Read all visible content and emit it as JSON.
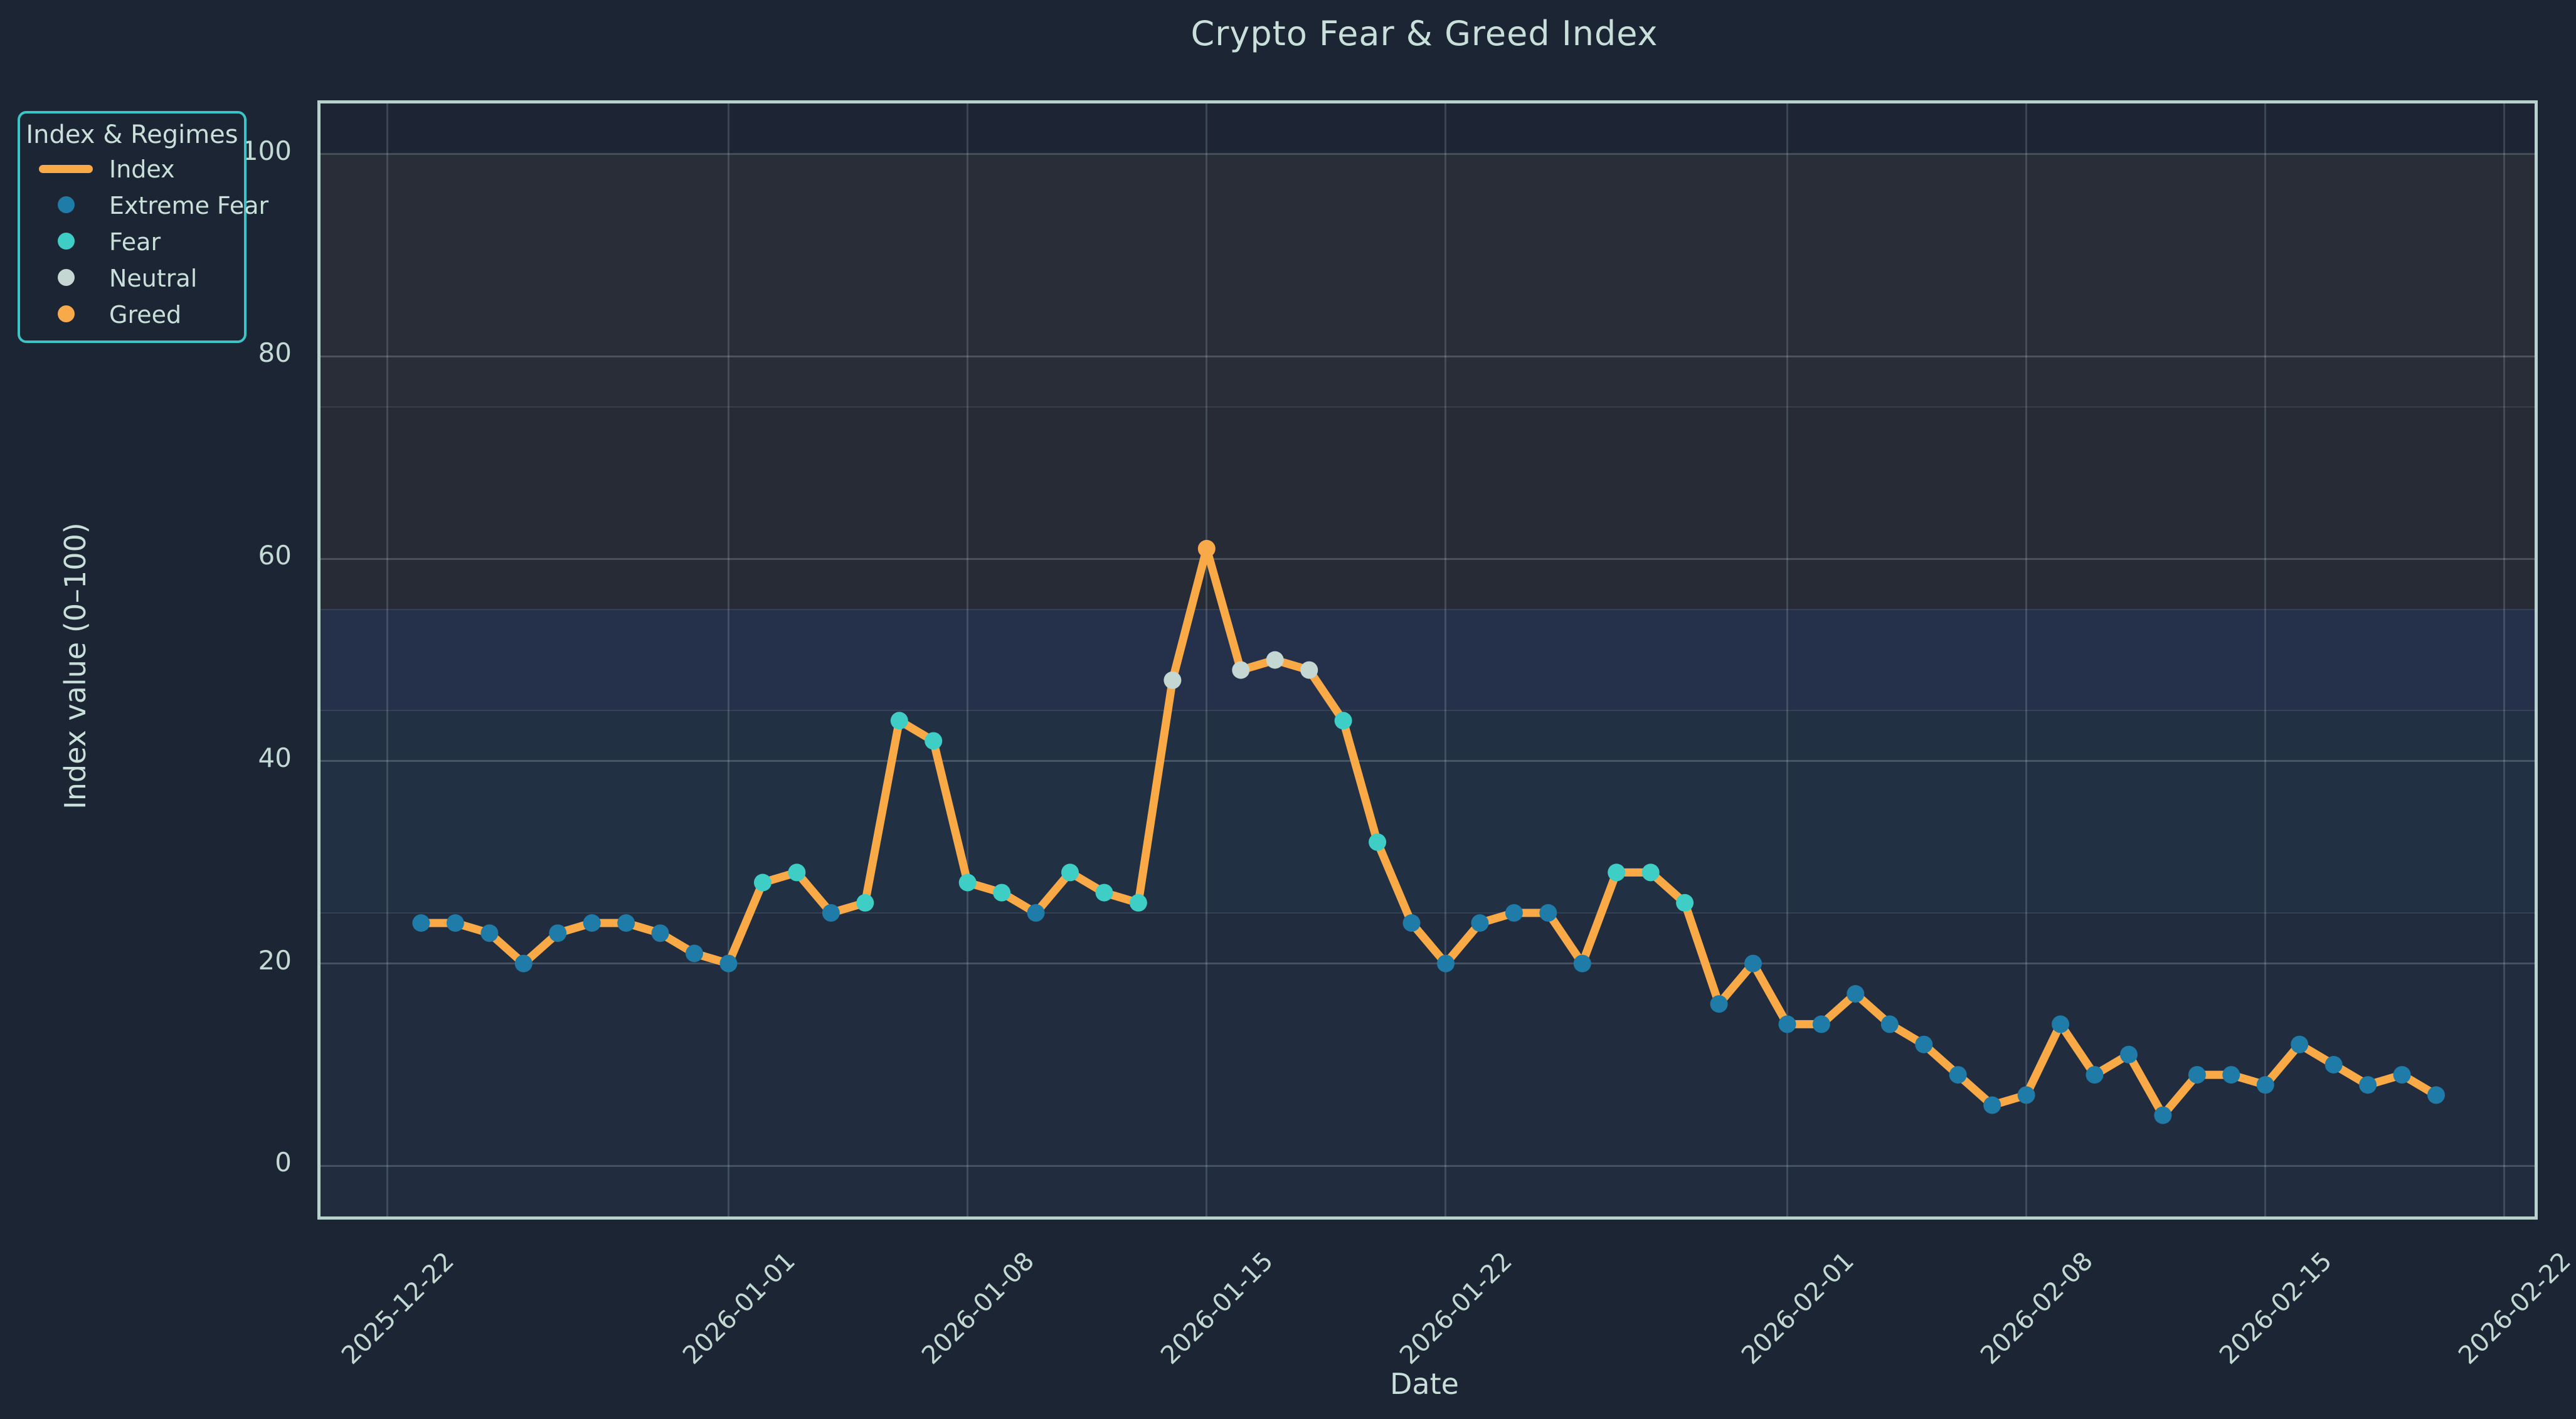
{
  "chart": {
    "title": "Crypto Fear & Greed Index",
    "xlabel": "Date",
    "ylabel": "Index value (0–100)"
  },
  "legend": {
    "title": "Index & Regimes",
    "items": [
      {
        "label": "Index",
        "marker": "line",
        "color": "#f9a946"
      },
      {
        "label": "Extreme Fear",
        "marker": "dot",
        "color": "#1f7ca8"
      },
      {
        "label": "Fear",
        "marker": "dot",
        "color": "#3fcec5"
      },
      {
        "label": "Neutral",
        "marker": "dot",
        "color": "#c4d7d2"
      },
      {
        "label": "Greed",
        "marker": "dot",
        "color": "#f8aa4b"
      }
    ]
  },
  "chart_data": {
    "type": "line",
    "title": "Crypto Fear & Greed Index",
    "xlabel": "Date",
    "ylabel": "Index value (0–100)",
    "series_name": "Index",
    "line_color": "#f9a946",
    "x": [
      "2025-12-23",
      "2025-12-24",
      "2025-12-25",
      "2025-12-26",
      "2025-12-27",
      "2025-12-28",
      "2025-12-29",
      "2025-12-30",
      "2025-12-31",
      "2026-01-01",
      "2026-01-02",
      "2026-01-03",
      "2026-01-04",
      "2026-01-05",
      "2026-01-06",
      "2026-01-07",
      "2026-01-08",
      "2026-01-09",
      "2026-01-10",
      "2026-01-11",
      "2026-01-12",
      "2026-01-13",
      "2026-01-14",
      "2026-01-15",
      "2026-01-16",
      "2026-01-17",
      "2026-01-18",
      "2026-01-19",
      "2026-01-20",
      "2026-01-21",
      "2026-01-22",
      "2026-01-23",
      "2026-01-24",
      "2026-01-25",
      "2026-01-26",
      "2026-01-27",
      "2026-01-28",
      "2026-01-29",
      "2026-01-30",
      "2026-01-31",
      "2026-02-01",
      "2026-02-02",
      "2026-02-03",
      "2026-02-04",
      "2026-02-05",
      "2026-02-06",
      "2026-02-07",
      "2026-02-08",
      "2026-02-09",
      "2026-02-10",
      "2026-02-11",
      "2026-02-12",
      "2026-02-13",
      "2026-02-14",
      "2026-02-15",
      "2026-02-16",
      "2026-02-17",
      "2026-02-18",
      "2026-02-19",
      "2026-02-20"
    ],
    "values": [
      24,
      24,
      23,
      20,
      23,
      24,
      24,
      23,
      21,
      20,
      28,
      29,
      25,
      26,
      44,
      42,
      28,
      27,
      25,
      29,
      27,
      26,
      48,
      61,
      49,
      50,
      49,
      44,
      32,
      24,
      20,
      24,
      25,
      25,
      20,
      29,
      29,
      26,
      16,
      20,
      14,
      14,
      17,
      14,
      12,
      9,
      6,
      7,
      14,
      9,
      11,
      5,
      9,
      9,
      8,
      12,
      10,
      8,
      9,
      7
    ],
    "point_regimes": [
      "Extreme Fear",
      "Extreme Fear",
      "Extreme Fear",
      "Extreme Fear",
      "Extreme Fear",
      "Extreme Fear",
      "Extreme Fear",
      "Extreme Fear",
      "Extreme Fear",
      "Extreme Fear",
      "Fear",
      "Fear",
      "Extreme Fear",
      "Fear",
      "Fear",
      "Fear",
      "Fear",
      "Fear",
      "Extreme Fear",
      "Fear",
      "Fear",
      "Fear",
      "Neutral",
      "Greed",
      "Neutral",
      "Neutral",
      "Neutral",
      "Fear",
      "Fear",
      "Extreme Fear",
      "Extreme Fear",
      "Extreme Fear",
      "Extreme Fear",
      "Extreme Fear",
      "Extreme Fear",
      "Fear",
      "Fear",
      "Fear",
      "Extreme Fear",
      "Extreme Fear",
      "Extreme Fear",
      "Extreme Fear",
      "Extreme Fear",
      "Extreme Fear",
      "Extreme Fear",
      "Extreme Fear",
      "Extreme Fear",
      "Extreme Fear",
      "Extreme Fear",
      "Extreme Fear",
      "Extreme Fear",
      "Extreme Fear",
      "Extreme Fear",
      "Extreme Fear",
      "Extreme Fear",
      "Extreme Fear",
      "Extreme Fear",
      "Extreme Fear",
      "Extreme Fear",
      "Extreme Fear"
    ],
    "regime_colors": {
      "Extreme Fear": "#1f7ca8",
      "Fear": "#3fcec5",
      "Neutral": "#c4d7d2",
      "Greed": "#f8aa4b"
    },
    "regime_thresholds": {
      "Extreme Fear": [
        0,
        25
      ],
      "Fear": [
        26,
        45
      ],
      "Neutral": [
        46,
        55
      ],
      "Greed": [
        56,
        100
      ]
    },
    "yticks": [
      0,
      20,
      40,
      60,
      80,
      100
    ],
    "xticks": [
      "2025-12-22",
      "2026-01-01",
      "2026-01-08",
      "2026-01-15",
      "2026-01-22",
      "2026-02-01",
      "2026-02-08",
      "2026-02-15",
      "2026-02-22"
    ],
    "ylim": [
      -5,
      105
    ],
    "grid": true,
    "legend_position": "upper left, outside plot",
    "background_bands": [
      {
        "from": -5,
        "to": 25,
        "color": "#212c3e"
      },
      {
        "from": 25,
        "to": 45,
        "color": "#223044"
      },
      {
        "from": 45,
        "to": 55,
        "color": "#25304a"
      },
      {
        "from": 55,
        "to": 75,
        "color": "#272b35"
      },
      {
        "from": 75,
        "to": 100,
        "color": "#292d37"
      }
    ]
  }
}
